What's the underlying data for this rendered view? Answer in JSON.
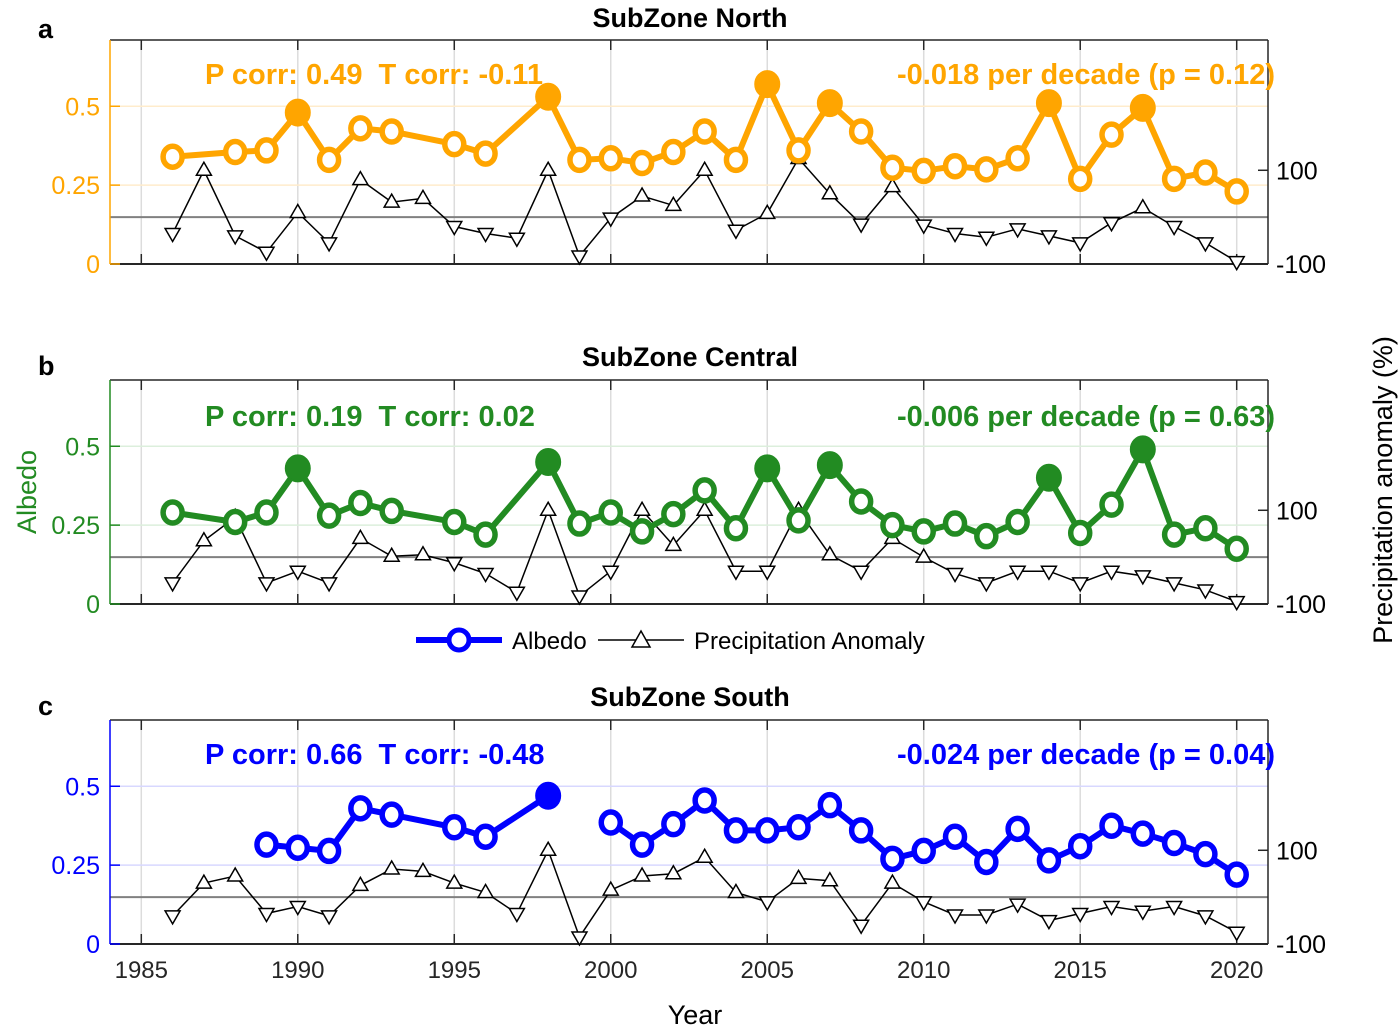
{
  "figure": {
    "xlabel": "Year",
    "left_ylabel": "Albedo",
    "right_ylabel": "Precipitation anomaly (%)",
    "legend": [
      {
        "label": "Albedo",
        "marker": "circle",
        "color": "#0000ff"
      },
      {
        "label": "Precipitation Anomaly",
        "marker": "triangle",
        "color": "#000000"
      }
    ]
  },
  "chart_data": [
    {
      "type": "line",
      "panel": "a",
      "title": "SubZone North",
      "color": "#ffa500",
      "grid_color": "#ffeccc",
      "corr_text": "P corr: 0.49  T corr: -0.11",
      "trend_text": "-0.018 per decade (p = 0.12)",
      "xlabel": "",
      "ylabel": "",
      "xlim": [
        1984,
        2021
      ],
      "xticks": [
        1985,
        1990,
        1995,
        2000,
        2005,
        2010,
        2015,
        2020
      ],
      "ylim": [
        0,
        0.71
      ],
      "yticks": [
        0,
        0.25,
        0.5
      ],
      "ytick_labels": [
        "0",
        "0.25",
        "0.5"
      ],
      "y2lim": [
        -100,
        378
      ],
      "y2ticks": [
        -100,
        100
      ],
      "y2tick_labels": [
        "-100",
        "100"
      ],
      "series": [
        {
          "name": "Albedo",
          "x": [
            1986,
            1988,
            1989,
            1990,
            1991,
            1992,
            1993,
            1995,
            1996,
            1998,
            1999,
            2000,
            2001,
            2002,
            2003,
            2004,
            2005,
            2006,
            2007,
            2008,
            2009,
            2010,
            2011,
            2012,
            2013,
            2014,
            2015,
            2016,
            2017,
            2018,
            2019,
            2020
          ],
          "values": [
            0.34,
            0.355,
            0.36,
            0.48,
            0.33,
            0.43,
            0.42,
            0.38,
            0.35,
            0.53,
            0.33,
            0.335,
            0.32,
            0.355,
            0.42,
            0.33,
            0.57,
            0.36,
            0.51,
            0.42,
            0.305,
            0.295,
            0.31,
            0.3,
            0.335,
            0.51,
            0.27,
            0.41,
            0.495,
            0.27,
            0.29,
            0.23
          ],
          "filled": [
            false,
            false,
            false,
            true,
            false,
            false,
            false,
            false,
            false,
            true,
            false,
            false,
            false,
            false,
            false,
            false,
            true,
            false,
            true,
            false,
            false,
            false,
            false,
            false,
            false,
            true,
            false,
            false,
            true,
            false,
            false,
            false
          ]
        },
        {
          "name": "Precipitation Anomaly",
          "x": [
            1986,
            1987,
            1988,
            1989,
            1990,
            1991,
            1992,
            1993,
            1994,
            1995,
            1996,
            1997,
            1998,
            1999,
            2000,
            2001,
            2002,
            2003,
            2004,
            2005,
            2006,
            2007,
            2008,
            2009,
            2010,
            2011,
            2012,
            2013,
            2014,
            2015,
            2016,
            2017,
            2018,
            2019,
            2020
          ],
          "values": [
            -35,
            100,
            -40,
            -75,
            10,
            -55,
            80,
            32,
            40,
            -20,
            -35,
            -45,
            100,
            -83,
            -2,
            45,
            25,
            100,
            -28,
            8,
            125,
            50,
            -15,
            65,
            -17,
            -35,
            -43,
            -25,
            -40,
            -55,
            -12,
            20,
            -20,
            -55,
            -95
          ]
        }
      ]
    },
    {
      "type": "line",
      "panel": "b",
      "title": "SubZone Central",
      "color": "#228b22",
      "grid_color": "#dcefdc",
      "corr_text": "P corr: 0.19  T corr: 0.02",
      "trend_text": "-0.006 per decade (p = 0.63)",
      "xlabel": "",
      "ylabel": "Albedo",
      "xlim": [
        1984,
        2021
      ],
      "xticks": [
        1985,
        1990,
        1995,
        2000,
        2005,
        2010,
        2015,
        2020
      ],
      "ylim": [
        0,
        0.71
      ],
      "yticks": [
        0,
        0.25,
        0.5
      ],
      "ytick_labels": [
        "0",
        "0.25",
        "0.5"
      ],
      "y2lim": [
        -100,
        378
      ],
      "y2ticks": [
        -100,
        100
      ],
      "y2tick_labels": [
        "-100",
        "100"
      ],
      "series": [
        {
          "name": "Albedo",
          "x": [
            1986,
            1988,
            1989,
            1990,
            1991,
            1992,
            1993,
            1995,
            1996,
            1998,
            1999,
            2000,
            2001,
            2002,
            2003,
            2004,
            2005,
            2006,
            2007,
            2008,
            2009,
            2010,
            2011,
            2012,
            2013,
            2014,
            2015,
            2016,
            2017,
            2018,
            2019,
            2020
          ],
          "values": [
            0.29,
            0.26,
            0.29,
            0.43,
            0.28,
            0.32,
            0.295,
            0.26,
            0.22,
            0.45,
            0.255,
            0.29,
            0.23,
            0.285,
            0.36,
            0.24,
            0.43,
            0.265,
            0.44,
            0.325,
            0.25,
            0.23,
            0.255,
            0.215,
            0.26,
            0.4,
            0.225,
            0.315,
            0.49,
            0.22,
            0.24,
            0.175
          ],
          "filled": [
            false,
            false,
            false,
            true,
            false,
            false,
            false,
            false,
            false,
            true,
            false,
            false,
            false,
            false,
            false,
            false,
            true,
            false,
            true,
            false,
            false,
            false,
            false,
            false,
            false,
            true,
            false,
            false,
            true,
            false,
            false,
            false
          ]
        },
        {
          "name": "Precipitation Anomaly",
          "x": [
            1986,
            1987,
            1988,
            1989,
            1990,
            1991,
            1992,
            1993,
            1994,
            1995,
            1996,
            1997,
            1998,
            1999,
            2000,
            2001,
            2002,
            2003,
            2004,
            2005,
            2006,
            2007,
            2008,
            2009,
            2010,
            2011,
            2012,
            2013,
            2014,
            2015,
            2016,
            2017,
            2018,
            2019,
            2020
          ],
          "values": [
            -55,
            35,
            85,
            -55,
            -30,
            -55,
            40,
            2,
            5,
            -12,
            -35,
            -75,
            100,
            -83,
            -30,
            100,
            25,
            100,
            -30,
            -30,
            100,
            5,
            -30,
            40,
            0,
            -35,
            -55,
            -30,
            -30,
            -55,
            -30,
            -40,
            -55,
            -70,
            -95
          ]
        }
      ]
    },
    {
      "type": "line",
      "panel": "c",
      "title": "SubZone South",
      "color": "#0000ff",
      "grid_color": "#d8d8ff",
      "corr_text": "P corr: 0.66  T corr: -0.48",
      "trend_text": "-0.024 per decade (p = 0.04)",
      "xlabel": "Year",
      "ylabel": "",
      "xlim": [
        1984,
        2021
      ],
      "xticks": [
        1985,
        1990,
        1995,
        2000,
        2005,
        2010,
        2015,
        2020
      ],
      "xtick_labels": [
        "1985",
        "1990",
        "1995",
        "2000",
        "2005",
        "2010",
        "2015",
        "2020"
      ],
      "ylim": [
        0,
        0.71
      ],
      "yticks": [
        0,
        0.25,
        0.5
      ],
      "ytick_labels": [
        "0",
        "0.25",
        "0.5"
      ],
      "y2lim": [
        -100,
        378
      ],
      "y2ticks": [
        -100,
        100
      ],
      "y2tick_labels": [
        "-100",
        "100"
      ],
      "series": [
        {
          "name": "Albedo",
          "x": [
            1989,
            1990,
            1991,
            1992,
            1993,
            1995,
            1996,
            1998,
            2000,
            2001,
            2002,
            2003,
            2004,
            2005,
            2006,
            2007,
            2008,
            2009,
            2010,
            2011,
            2012,
            2013,
            2014,
            2015,
            2016,
            2017,
            2018,
            2019,
            2020
          ],
          "values": [
            0.315,
            0.305,
            0.295,
            0.43,
            0.41,
            0.37,
            0.34,
            0.47,
            0.385,
            0.315,
            0.38,
            0.455,
            0.36,
            0.36,
            0.37,
            0.44,
            0.36,
            0.27,
            0.295,
            0.34,
            0.26,
            0.365,
            0.265,
            0.31,
            0.375,
            0.35,
            0.32,
            0.285,
            0.22
          ],
          "filled": [
            false,
            false,
            false,
            false,
            false,
            false,
            false,
            true,
            false,
            false,
            false,
            false,
            false,
            false,
            false,
            false,
            false,
            false,
            false,
            false,
            false,
            false,
            false,
            false,
            false,
            false,
            false,
            false,
            false
          ],
          "gap_after": 1998
        },
        {
          "name": "Precipitation Anomaly",
          "x": [
            1986,
            1987,
            1988,
            1989,
            1990,
            1991,
            1992,
            1993,
            1994,
            1995,
            1996,
            1997,
            1998,
            1999,
            2000,
            2001,
            2002,
            2003,
            2004,
            2005,
            2006,
            2007,
            2008,
            2009,
            2010,
            2011,
            2012,
            2013,
            2014,
            2015,
            2016,
            2017,
            2018,
            2019,
            2020
          ],
          "values": [
            -40,
            30,
            45,
            -35,
            -20,
            -40,
            25,
            60,
            55,
            30,
            10,
            -35,
            100,
            -85,
            15,
            45,
            50,
            85,
            10,
            -10,
            40,
            35,
            -60,
            30,
            -10,
            -38,
            -38,
            -15,
            -50,
            -35,
            -20,
            -30,
            -20,
            -40,
            -75
          ]
        }
      ]
    }
  ]
}
